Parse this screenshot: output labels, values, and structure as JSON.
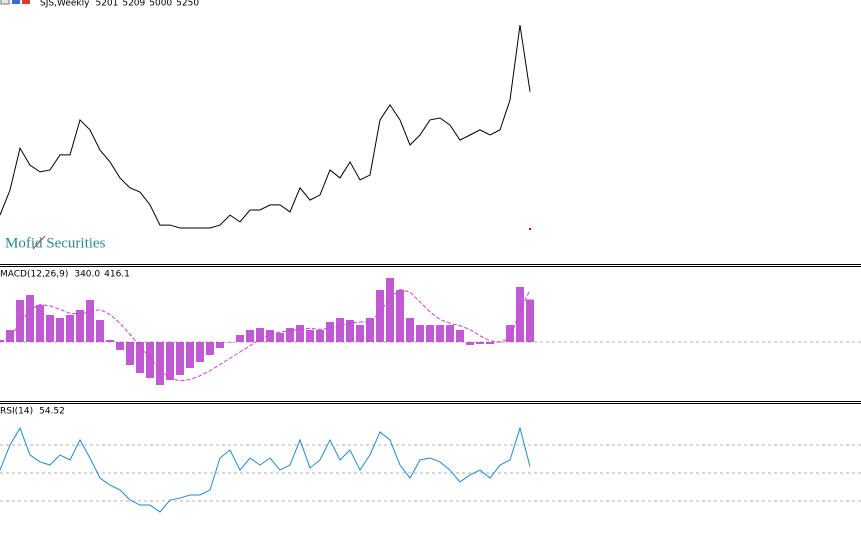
{
  "chart_data": [
    {
      "type": "line",
      "title": "SJS,Weekly",
      "readout": [
        5201,
        5209,
        5000,
        5250
      ],
      "watermark": "Mofid Securities",
      "color": "#000000",
      "ylim": [
        0,
        7800
      ],
      "values": [
        1400,
        2180,
        3490,
        2960,
        2750,
        2810,
        3280,
        3280,
        4370,
        4060,
        3430,
        3060,
        2560,
        2250,
        2120,
        1720,
        1090,
        1090,
        1000,
        1000,
        1000,
        1000,
        1090,
        1400,
        1190,
        1560,
        1560,
        1720,
        1720,
        1500,
        2250,
        1870,
        2030,
        2810,
        2560,
        3060,
        2500,
        2650,
        4370,
        4840,
        4370,
        3590,
        3900,
        4370,
        4430,
        4210,
        3740,
        3900,
        4060,
        3900,
        4060,
        4990,
        7330,
        5250
      ]
    },
    {
      "type": "bar",
      "title": "MACD(12,26,9)",
      "readout": [
        {
          "value": 340,
          "label": "340.0"
        },
        416.1
      ],
      "color": "#b030c8",
      "signal_color": "#d040d8",
      "ylim": [
        -464,
        592
      ],
      "levels": [
        0
      ],
      "values": [
        16,
        96,
        336,
        376,
        296,
        216,
        192,
        216,
        256,
        336,
        176,
        16,
        -64,
        -184,
        -248,
        -288,
        -344,
        -304,
        -264,
        -208,
        -160,
        -104,
        -48,
        0,
        56,
        96,
        112,
        96,
        72,
        112,
        136,
        96,
        96,
        160,
        192,
        176,
        136,
        192,
        416,
        512,
        416,
        192,
        136,
        136,
        136,
        136,
        96,
        -24,
        -16,
        -16,
        0,
        136,
        440,
        340
      ],
      "signal_values": [
        0,
        40,
        150,
        260,
        300,
        290,
        260,
        230,
        225,
        240,
        260,
        220,
        150,
        60,
        -30,
        -130,
        -220,
        -290,
        -310,
        -300,
        -270,
        -230,
        -180,
        -130,
        -80,
        -30,
        20,
        60,
        80,
        90,
        100,
        110,
        100,
        110,
        130,
        150,
        160,
        160,
        240,
        350,
        420,
        400,
        320,
        240,
        180,
        150,
        130,
        100,
        50,
        10,
        0,
        30,
        250,
        416.1
      ]
    },
    {
      "type": "line",
      "title": "RSI(14)",
      "readout": [
        54.52
      ],
      "color": "#1e8ad0",
      "ylim": [
        0,
        100
      ],
      "levels": [
        30,
        50,
        70
      ],
      "values": [
        52.1,
        70,
        82.1,
        62.9,
        57.9,
        55.7,
        62.9,
        59.3,
        73.6,
        60.7,
        46.4,
        41.4,
        37.9,
        30.7,
        27.1,
        27.1,
        22.1,
        30.7,
        32.1,
        34.3,
        34.3,
        37.9,
        60.7,
        66.4,
        52.1,
        60.7,
        55.7,
        60.7,
        52.1,
        55.7,
        73.6,
        53.6,
        59.3,
        73.6,
        59.3,
        66.4,
        52.1,
        62.9,
        79.3,
        73.6,
        55.7,
        46.4,
        59.3,
        60.7,
        57.9,
        52.1,
        43.6,
        48.6,
        52.1,
        46.4,
        55.7,
        59.3,
        82.1,
        54.52
      ]
    }
  ]
}
